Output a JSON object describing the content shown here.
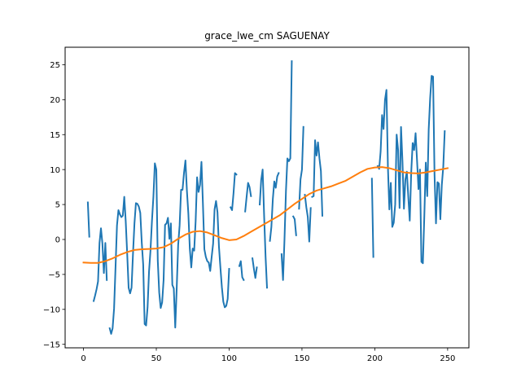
{
  "chart_data": {
    "type": "line",
    "title": "grace_lwe_cm SAGUENAY",
    "xlabel": "",
    "ylabel": "",
    "xlim": [
      -12.6,
      264.6
    ],
    "ylim": [
      -15.5,
      27.5
    ],
    "xticks": [
      0,
      50,
      100,
      150,
      200,
      250
    ],
    "yticks": [
      -15,
      -10,
      -5,
      0,
      5,
      10,
      15,
      20,
      25
    ],
    "grid": false,
    "legend": "none",
    "series": [
      {
        "color": "#1f77b4",
        "points": [
          [
            3,
            5.3
          ],
          [
            4,
            0.4
          ],
          [
            null,
            null
          ],
          [
            7,
            -8.8
          ],
          [
            8,
            -8.0
          ],
          [
            9,
            -7.1
          ],
          [
            10,
            -6.0
          ],
          [
            11,
            -0.5
          ],
          [
            12,
            1.6
          ],
          [
            13,
            -0.6
          ],
          [
            14,
            -4.8
          ],
          [
            15,
            -0.5
          ],
          [
            16,
            -5.8
          ],
          [
            null,
            null
          ],
          [
            18,
            -12.7
          ],
          [
            19,
            -13.5
          ],
          [
            20,
            -12.7
          ],
          [
            21,
            -9.9
          ],
          [
            22,
            -4.0
          ],
          [
            23,
            2.0
          ],
          [
            24,
            4.2
          ],
          [
            25,
            3.6
          ],
          [
            26,
            3.2
          ],
          [
            27,
            3.4
          ],
          [
            28,
            6.1
          ],
          [
            29,
            2.6
          ],
          [
            30,
            -2.0
          ],
          [
            31,
            -6.9
          ],
          [
            32,
            -7.7
          ],
          [
            33,
            -6.9
          ],
          [
            34,
            -2.0
          ],
          [
            35,
            2.3
          ],
          [
            36,
            5.2
          ],
          [
            37,
            5.1
          ],
          [
            38,
            4.7
          ],
          [
            39,
            3.8
          ],
          [
            40,
            -0.4
          ],
          [
            41,
            -3.6
          ],
          [
            42,
            -12.1
          ],
          [
            43,
            -12.3
          ],
          [
            44,
            -9.7
          ],
          [
            45,
            -4.6
          ],
          [
            46,
            -1.6
          ],
          [
            47,
            2.6
          ],
          [
            48,
            6.1
          ],
          [
            49,
            10.9
          ],
          [
            50,
            10.0
          ],
          [
            51,
            -3.0
          ],
          [
            52,
            -7.6
          ],
          [
            53,
            -9.8
          ],
          [
            54,
            -9.0
          ],
          [
            55,
            -5.8
          ],
          [
            56,
            2.1
          ],
          [
            57,
            2.3
          ],
          [
            58,
            3.1
          ],
          [
            59,
            0.1
          ],
          [
            60,
            2.3
          ],
          [
            61,
            -6.5
          ],
          [
            62,
            -7.0
          ],
          [
            63,
            -12.6
          ],
          [
            64,
            -7.0
          ],
          [
            65,
            -0.8
          ],
          [
            66,
            2.0
          ],
          [
            67,
            7.1
          ],
          [
            68,
            7.1
          ],
          [
            69,
            9.5
          ],
          [
            70,
            11.3
          ],
          [
            71,
            7.0
          ],
          [
            72,
            3.7
          ],
          [
            73,
            -1.3
          ],
          [
            74,
            -4.0
          ],
          [
            75,
            -1.3
          ],
          [
            76,
            -1.6
          ],
          [
            77,
            2.6
          ],
          [
            78,
            8.9
          ],
          [
            79,
            6.8
          ],
          [
            80,
            7.8
          ],
          [
            81,
            11.1
          ],
          [
            82,
            5.1
          ],
          [
            83,
            -1.4
          ],
          [
            84,
            -2.5
          ],
          [
            85,
            -3.1
          ],
          [
            86,
            -3.3
          ],
          [
            87,
            -4.5
          ],
          [
            88,
            -2.5
          ],
          [
            89,
            -0.6
          ],
          [
            90,
            4.3
          ],
          [
            91,
            5.5
          ],
          [
            92,
            3.9
          ],
          [
            93,
            -1.0
          ],
          [
            94,
            -4.0
          ],
          [
            95,
            -6.8
          ],
          [
            96,
            -8.9
          ],
          [
            97,
            -9.7
          ],
          [
            98,
            -9.5
          ],
          [
            99,
            -8.5
          ],
          [
            100,
            -4.2
          ],
          [
            null,
            null
          ],
          [
            101,
            4.6
          ],
          [
            102,
            4.2
          ],
          [
            103,
            6.6
          ],
          [
            104,
            9.5
          ],
          [
            105,
            9.3
          ],
          [
            null,
            null
          ],
          [
            107,
            -3.8
          ],
          [
            108,
            -3.1
          ],
          [
            109,
            -5.4
          ],
          [
            110,
            -5.8
          ],
          [
            null,
            null
          ],
          [
            111,
            4.0
          ],
          [
            112,
            6.1
          ],
          [
            113,
            8.1
          ],
          [
            114,
            7.5
          ],
          [
            115,
            6.2
          ],
          [
            null,
            null
          ],
          [
            116,
            -2.7
          ],
          [
            117,
            -4.2
          ],
          [
            118,
            -5.5
          ],
          [
            119,
            -4.0
          ],
          [
            null,
            null
          ],
          [
            121,
            5.0
          ],
          [
            122,
            8.5
          ],
          [
            123,
            10.0
          ],
          [
            124,
            3.5
          ],
          [
            125,
            -2.4
          ],
          [
            126,
            -6.9
          ],
          [
            null,
            null
          ],
          [
            128,
            -0.2
          ],
          [
            129,
            1.8
          ],
          [
            130,
            5.8
          ],
          [
            131,
            8.3
          ],
          [
            132,
            7.4
          ],
          [
            133,
            9.0
          ],
          [
            134,
            9.5
          ],
          [
            null,
            null
          ],
          [
            136,
            -2.1
          ],
          [
            137,
            -5.8
          ],
          [
            138,
            0.0
          ],
          [
            139,
            6.9
          ],
          [
            140,
            11.6
          ],
          [
            141,
            11.2
          ],
          [
            142,
            11.6
          ],
          [
            143,
            25.5
          ],
          [
            null,
            null
          ],
          [
            144,
            3.3
          ],
          [
            145,
            2.9
          ],
          [
            146,
            0.6
          ],
          [
            null,
            null
          ],
          [
            148,
            4.4
          ],
          [
            149,
            8.6
          ],
          [
            150,
            10.0
          ],
          [
            151,
            16.1
          ],
          [
            null,
            null
          ],
          [
            152,
            6.4
          ],
          [
            153,
            4.6
          ],
          [
            154,
            3.2
          ],
          [
            155,
            -0.3
          ],
          [
            156,
            4.5
          ],
          [
            null,
            null
          ],
          [
            157,
            6.1
          ],
          [
            158,
            6.2
          ],
          [
            159,
            14.2
          ],
          [
            160,
            12.0
          ],
          [
            161,
            13.9
          ],
          [
            162,
            11.6
          ],
          [
            163,
            9.8
          ],
          [
            164,
            3.4
          ],
          [
            null,
            null
          ],
          [
            198,
            8.7
          ],
          [
            199,
            -2.5
          ],
          [
            null,
            null
          ],
          [
            202,
            10.5
          ],
          [
            203,
            10.1
          ],
          [
            204,
            12.6
          ],
          [
            205,
            17.8
          ],
          [
            206,
            15.8
          ],
          [
            207,
            20.0
          ],
          [
            208,
            21.4
          ],
          [
            209,
            10.4
          ],
          [
            210,
            4.3
          ],
          [
            211,
            8.1
          ],
          [
            212,
            1.8
          ],
          [
            213,
            2.4
          ],
          [
            214,
            5.0
          ],
          [
            215,
            15.0
          ],
          [
            216,
            12.8
          ],
          [
            217,
            4.5
          ],
          [
            218,
            16.1
          ],
          [
            219,
            11.1
          ],
          [
            220,
            4.4
          ],
          [
            221,
            8.6
          ],
          [
            222,
            9.7
          ],
          [
            223,
            6.1
          ],
          [
            224,
            2.7
          ],
          [
            225,
            9.6
          ],
          [
            226,
            13.8
          ],
          [
            227,
            12.8
          ],
          [
            228,
            15.2
          ],
          [
            229,
            11.3
          ],
          [
            230,
            7.2
          ],
          [
            231,
            10.0
          ],
          [
            232,
            -3.2
          ],
          [
            233,
            -3.4
          ],
          [
            234,
            3.4
          ],
          [
            235,
            11.0
          ],
          [
            236,
            6.2
          ],
          [
            237,
            15.7
          ],
          [
            238,
            20.2
          ],
          [
            239,
            23.4
          ],
          [
            240,
            23.3
          ],
          [
            241,
            9.3
          ],
          [
            242,
            2.3
          ],
          [
            243,
            8.2
          ],
          [
            244,
            8.0
          ],
          [
            245,
            2.9
          ],
          [
            246,
            7.8
          ],
          [
            247,
            10.4
          ],
          [
            248,
            15.5
          ]
        ]
      },
      {
        "color": "#ff7f0e",
        "points": [
          [
            0,
            -3.3
          ],
          [
            5,
            -3.35
          ],
          [
            10,
            -3.35
          ],
          [
            15,
            -3.1
          ],
          [
            20,
            -2.7
          ],
          [
            25,
            -2.2
          ],
          [
            30,
            -1.8
          ],
          [
            35,
            -1.5
          ],
          [
            40,
            -1.4
          ],
          [
            45,
            -1.35
          ],
          [
            50,
            -1.3
          ],
          [
            55,
            -1.1
          ],
          [
            60,
            -0.6
          ],
          [
            65,
            0.1
          ],
          [
            70,
            0.7
          ],
          [
            75,
            1.1
          ],
          [
            80,
            1.2
          ],
          [
            85,
            1.0
          ],
          [
            90,
            0.6
          ],
          [
            95,
            0.2
          ],
          [
            100,
            -0.1
          ],
          [
            105,
            0.0
          ],
          [
            110,
            0.5
          ],
          [
            115,
            1.1
          ],
          [
            120,
            1.7
          ],
          [
            125,
            2.3
          ],
          [
            130,
            2.9
          ],
          [
            135,
            3.5
          ],
          [
            140,
            4.3
          ],
          [
            145,
            5.1
          ],
          [
            150,
            5.8
          ],
          [
            155,
            6.5
          ],
          [
            160,
            7.0
          ],
          [
            165,
            7.3
          ],
          [
            170,
            7.6
          ],
          [
            175,
            8.0
          ],
          [
            180,
            8.4
          ],
          [
            185,
            9.0
          ],
          [
            190,
            9.6
          ],
          [
            195,
            10.1
          ],
          [
            200,
            10.3
          ],
          [
            205,
            10.35
          ],
          [
            210,
            10.2
          ],
          [
            215,
            9.9
          ],
          [
            220,
            9.6
          ],
          [
            225,
            9.5
          ],
          [
            230,
            9.45
          ],
          [
            235,
            9.6
          ],
          [
            240,
            9.8
          ],
          [
            245,
            10.0
          ],
          [
            250,
            10.2
          ]
        ]
      }
    ]
  }
}
